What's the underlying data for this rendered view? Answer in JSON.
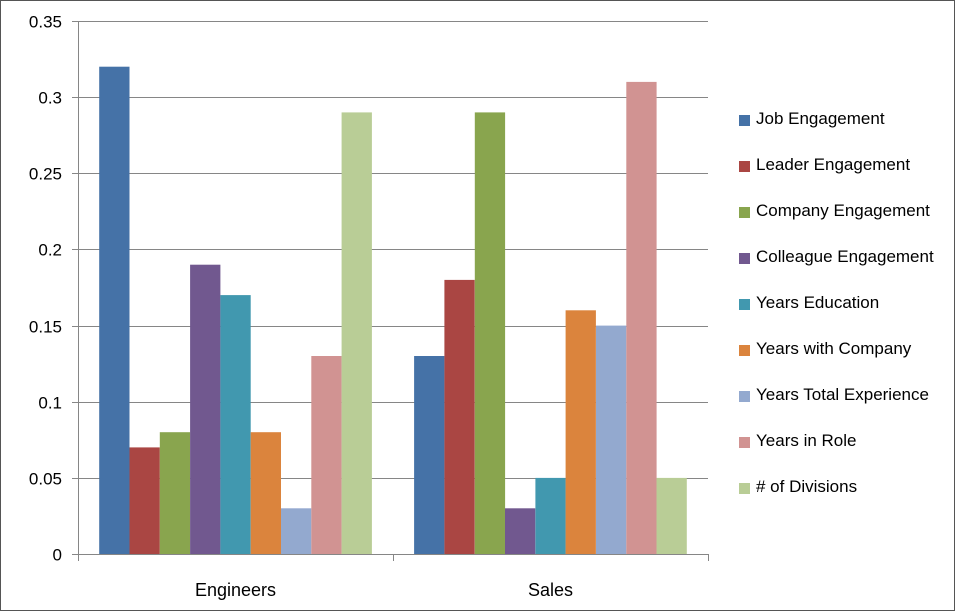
{
  "chart_data": {
    "type": "bar",
    "categories": [
      "Engineers",
      "Sales"
    ],
    "ylim": [
      0,
      0.35
    ],
    "yticks": [
      "0",
      "0.05",
      "0.1",
      "0.15",
      "0.2",
      "0.25",
      "0.3",
      "0.35"
    ],
    "grid": true,
    "legend_position": "right",
    "series": [
      {
        "name": "Job Engagement",
        "color": "#4572A7",
        "values": [
          0.32,
          0.13
        ]
      },
      {
        "name": "Leader Engagement",
        "color": "#AA4643",
        "values": [
          0.07,
          0.18
        ]
      },
      {
        "name": "Company Engagement",
        "color": "#89A54E",
        "values": [
          0.08,
          0.29
        ]
      },
      {
        "name": "Colleague Engagement",
        "color": "#71588F",
        "values": [
          0.19,
          0.03
        ]
      },
      {
        "name": "Years Education",
        "color": "#4198AF",
        "values": [
          0.17,
          0.05
        ]
      },
      {
        "name": "Years with Company",
        "color": "#DB843D",
        "values": [
          0.08,
          0.16
        ]
      },
      {
        "name": "Years Total Experience",
        "color": "#93A9CF",
        "values": [
          0.03,
          0.15
        ]
      },
      {
        "name": "Years in Role",
        "color": "#D19392",
        "values": [
          0.13,
          0.31
        ]
      },
      {
        "name": "# of Divisions",
        "color": "#B9CD96",
        "values": [
          0.29,
          0.05
        ]
      }
    ]
  }
}
